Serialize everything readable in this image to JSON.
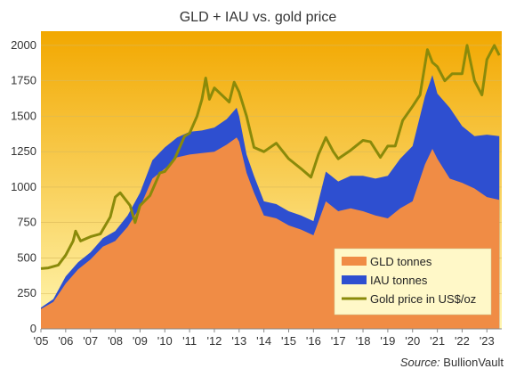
{
  "chart_data": {
    "type": "area",
    "title": "GLD + IAU vs. gold price",
    "xlabel": "",
    "ylabel": "",
    "xlim": [
      2005,
      2023.6
    ],
    "ylim": [
      0,
      2100
    ],
    "y_ticks": [
      0,
      250,
      500,
      750,
      1000,
      1250,
      1500,
      1750,
      2000
    ],
    "x_ticks": [
      2005,
      2006,
      2007,
      2008,
      2009,
      2010,
      2011,
      2012,
      2013,
      2014,
      2015,
      2016,
      2017,
      2018,
      2019,
      2020,
      2021,
      2022,
      2023
    ],
    "x_tick_labels": [
      "'05",
      "'06",
      "'07",
      "'08",
      "'09",
      "'10",
      "'11",
      "'12",
      "'13",
      "'14",
      "'15",
      "'16",
      "'17",
      "'18",
      "'19",
      "'20",
      "'21",
      "'22",
      "'23"
    ],
    "grid": true,
    "legend_position": "bottom-right",
    "background": [
      "#f2a800",
      "#fff6b0"
    ],
    "source_label": "Source:",
    "source_name": "BullionVault",
    "series": [
      {
        "name": "GLD tonnes",
        "kind": "stacked-area-base",
        "color": "#f08c45",
        "x": [
          2005.0,
          2005.5,
          2006.0,
          2006.5,
          2007.0,
          2007.5,
          2008.0,
          2008.5,
          2009.0,
          2009.5,
          2010.0,
          2010.5,
          2011.0,
          2011.5,
          2012.0,
          2012.5,
          2012.9,
          2013.0,
          2013.3,
          2013.6,
          2014.0,
          2014.5,
          2015.0,
          2015.5,
          2016.0,
          2016.5,
          2017.0,
          2017.5,
          2018.0,
          2018.5,
          2019.0,
          2019.5,
          2020.0,
          2020.5,
          2020.8,
          2021.0,
          2021.5,
          2022.0,
          2022.5,
          2023.0,
          2023.5
        ],
        "values": [
          140,
          190,
          320,
          420,
          490,
          580,
          620,
          720,
          860,
          1060,
          1130,
          1210,
          1230,
          1240,
          1250,
          1300,
          1350,
          1320,
          1100,
          960,
          800,
          780,
          730,
          700,
          660,
          900,
          830,
          850,
          830,
          800,
          780,
          850,
          900,
          1160,
          1270,
          1200,
          1060,
          1030,
          990,
          930,
          910
        ]
      },
      {
        "name": "IAU tonnes",
        "kind": "stacked-area-top",
        "color": "#2e4fd0",
        "x": [
          2005.0,
          2005.5,
          2006.0,
          2006.5,
          2007.0,
          2007.5,
          2008.0,
          2008.5,
          2009.0,
          2009.5,
          2010.0,
          2010.5,
          2011.0,
          2011.5,
          2012.0,
          2012.5,
          2012.9,
          2013.0,
          2013.3,
          2013.6,
          2014.0,
          2014.5,
          2015.0,
          2015.5,
          2016.0,
          2016.5,
          2017.0,
          2017.5,
          2018.0,
          2018.5,
          2019.0,
          2019.5,
          2020.0,
          2020.5,
          2020.8,
          2021.0,
          2021.5,
          2022.0,
          2022.5,
          2023.0,
          2023.5
        ],
        "values": [
          150,
          210,
          370,
          470,
          540,
          640,
          690,
          800,
          960,
          1190,
          1280,
          1350,
          1390,
          1400,
          1420,
          1480,
          1560,
          1500,
          1230,
          1080,
          900,
          880,
          830,
          800,
          760,
          1110,
          1040,
          1080,
          1080,
          1060,
          1080,
          1200,
          1290,
          1640,
          1790,
          1660,
          1560,
          1430,
          1360,
          1370,
          1360
        ]
      },
      {
        "name": "Gold price in US$/oz",
        "kind": "line",
        "color": "#8a8a0a",
        "x": [
          2005.0,
          2005.3,
          2005.7,
          2006.0,
          2006.3,
          2006.4,
          2006.6,
          2007.0,
          2007.4,
          2007.8,
          2008.0,
          2008.2,
          2008.6,
          2008.8,
          2009.0,
          2009.4,
          2009.8,
          2010.0,
          2010.4,
          2010.8,
          2011.0,
          2011.3,
          2011.5,
          2011.65,
          2011.8,
          2012.0,
          2012.3,
          2012.6,
          2012.8,
          2013.0,
          2013.3,
          2013.6,
          2014.0,
          2014.5,
          2015.0,
          2015.5,
          2015.9,
          2016.2,
          2016.5,
          2016.8,
          2017.0,
          2017.5,
          2018.0,
          2018.3,
          2018.7,
          2019.0,
          2019.3,
          2019.6,
          2020.0,
          2020.3,
          2020.6,
          2020.8,
          2021.0,
          2021.3,
          2021.6,
          2022.0,
          2022.2,
          2022.5,
          2022.8,
          2023.0,
          2023.3,
          2023.5
        ],
        "values": [
          425,
          430,
          450,
          520,
          620,
          690,
          620,
          650,
          670,
          790,
          930,
          960,
          870,
          750,
          870,
          940,
          1100,
          1110,
          1200,
          1360,
          1380,
          1500,
          1620,
          1770,
          1620,
          1700,
          1650,
          1600,
          1740,
          1670,
          1500,
          1280,
          1250,
          1310,
          1200,
          1130,
          1070,
          1230,
          1350,
          1250,
          1200,
          1260,
          1330,
          1320,
          1210,
          1290,
          1290,
          1470,
          1570,
          1650,
          1970,
          1880,
          1850,
          1750,
          1800,
          1800,
          2000,
          1750,
          1650,
          1900,
          2000,
          1930
        ]
      }
    ]
  }
}
